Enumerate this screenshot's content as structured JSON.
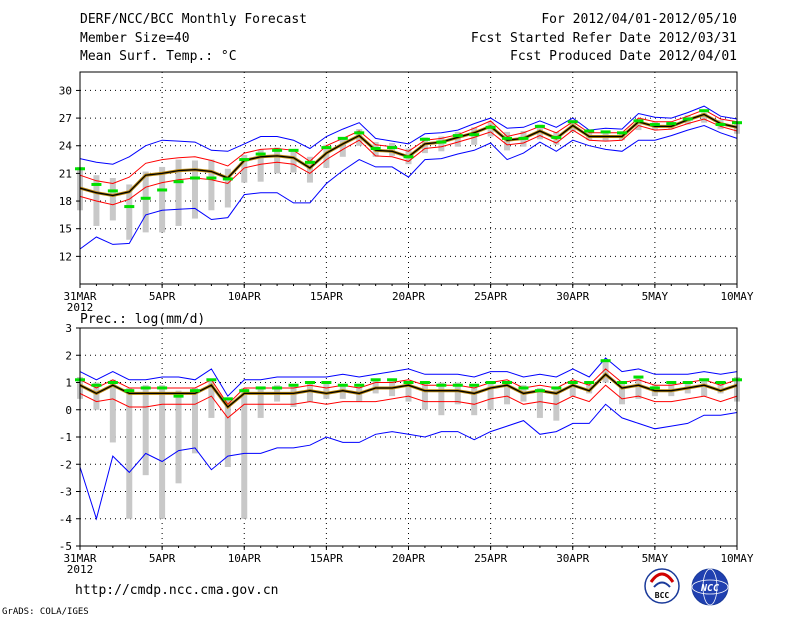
{
  "header": {
    "title": "DERF/NCC/BCC Monthly Forecast",
    "member_size": "Member Size=40",
    "variable": "Mean Surf. Temp.: °C",
    "forecast_range": "For 2012/04/01-2012/05/10",
    "start_refer": "Fcst Started Refer Date 2012/03/31",
    "produced": "Fcst Produced Date 2012/04/01"
  },
  "footer": {
    "url": "http://cmdp.ncc.cma.gov.cn",
    "grads": "GrADS: COLA/IGES",
    "logo_bcc": "BCC",
    "logo_ncc": "NCC"
  },
  "colors": {
    "envelope": "#0000ff",
    "band": "#ff0000",
    "mean": "#000000",
    "obs": "#00e000",
    "box": "#c8c8c8",
    "grid": "#000000"
  },
  "chart_data": [
    {
      "type": "line",
      "title": "Mean Surf. Temp.: °C",
      "x_labels": [
        "31MAR",
        "5APR",
        "10APR",
        "15APR",
        "20APR",
        "25APR",
        "30APR",
        "5MAY",
        "10MAY"
      ],
      "x_sublabel": "2012",
      "x": [
        0,
        1,
        2,
        3,
        4,
        5,
        6,
        7,
        8,
        9,
        10,
        11,
        12,
        13,
        14,
        15,
        16,
        17,
        18,
        19,
        20,
        21,
        22,
        23,
        24,
        25,
        26,
        27,
        28,
        29,
        30,
        31,
        32,
        33,
        34,
        35,
        36,
        37,
        38,
        39,
        40
      ],
      "ylim": [
        9,
        32
      ],
      "yticks": [
        12,
        15,
        18,
        21,
        24,
        27,
        30
      ],
      "series": [
        {
          "name": "max",
          "role": "envelope",
          "values": [
            22.6,
            22.2,
            22.0,
            22.8,
            24.0,
            24.6,
            24.5,
            24.4,
            23.5,
            23.4,
            24.2,
            25.0,
            25.0,
            24.6,
            23.7,
            25.0,
            25.8,
            26.5,
            24.8,
            24.5,
            24.2,
            25.3,
            25.4,
            25.7,
            26.4,
            27.0,
            25.9,
            26.0,
            26.7,
            26.0,
            27.0,
            25.7,
            25.9,
            25.8,
            27.5,
            27.1,
            27.0,
            27.6,
            28.3,
            27.2,
            26.9
          ]
        },
        {
          "name": "upper",
          "role": "band",
          "values": [
            20.8,
            20.2,
            19.9,
            20.6,
            22.1,
            22.5,
            22.7,
            22.8,
            22.4,
            21.8,
            23.2,
            23.6,
            23.7,
            23.5,
            22.3,
            24.0,
            24.8,
            25.6,
            24.1,
            23.9,
            23.4,
            24.6,
            24.8,
            25.2,
            25.9,
            26.7,
            25.0,
            25.4,
            26.1,
            25.4,
            26.6,
            25.4,
            25.4,
            25.4,
            27.0,
            26.6,
            26.6,
            27.2,
            27.9,
            26.9,
            26.6
          ]
        },
        {
          "name": "ensemble mean",
          "role": "mean",
          "values": [
            19.4,
            18.9,
            18.6,
            19.0,
            20.8,
            21.0,
            21.3,
            21.4,
            21.2,
            20.5,
            22.4,
            22.8,
            22.9,
            22.7,
            21.6,
            23.2,
            24.2,
            25.1,
            23.5,
            23.4,
            22.8,
            24.2,
            24.4,
            24.9,
            25.4,
            26.1,
            24.6,
            24.8,
            25.6,
            24.8,
            26.2,
            25.0,
            25.0,
            25.0,
            26.6,
            26.1,
            26.1,
            26.8,
            27.4,
            26.4,
            26.0
          ]
        },
        {
          "name": "lower",
          "role": "band",
          "values": [
            18.5,
            18.0,
            17.6,
            18.2,
            19.5,
            20.0,
            20.3,
            20.5,
            20.3,
            19.9,
            21.6,
            22.0,
            22.2,
            22.0,
            21.0,
            22.5,
            23.6,
            24.6,
            22.9,
            22.8,
            22.3,
            23.7,
            23.9,
            24.4,
            24.9,
            25.5,
            24.1,
            24.3,
            25.1,
            24.3,
            25.7,
            24.6,
            24.5,
            24.6,
            26.2,
            25.7,
            25.8,
            26.4,
            26.9,
            26.1,
            25.6
          ]
        },
        {
          "name": "min",
          "role": "envelope",
          "values": [
            12.8,
            14.1,
            13.3,
            13.4,
            16.5,
            17.0,
            17.1,
            17.2,
            16.0,
            16.2,
            18.7,
            18.9,
            18.9,
            17.8,
            17.8,
            19.9,
            21.3,
            22.5,
            21.7,
            21.7,
            20.6,
            22.5,
            22.6,
            23.1,
            23.5,
            24.3,
            22.5,
            23.2,
            24.4,
            23.4,
            24.6,
            24.0,
            23.6,
            23.4,
            24.6,
            24.6,
            25.1,
            25.7,
            26.2,
            25.4,
            24.8
          ]
        }
      ],
      "obs_values": [
        21.5,
        19.8,
        19.1,
        17.4,
        18.3,
        19.2,
        20.1,
        20.5,
        20.5,
        20.4,
        22.5,
        23.1,
        23.5,
        23.5,
        22.2,
        23.8,
        24.8,
        25.4,
        23.7,
        23.8,
        22.8,
        24.7,
        24.4,
        25.1,
        25.2,
        26.0,
        24.8,
        24.8,
        26.1,
        24.9,
        26.6,
        25.6,
        25.5,
        25.4,
        26.7,
        26.3,
        26.4,
        26.9,
        27.8,
        26.3,
        26.5
      ],
      "box_ranges": [
        [
          17.0,
          21.7
        ],
        [
          15.3,
          20.8
        ],
        [
          15.9,
          20.5
        ],
        [
          13.8,
          19.8
        ],
        [
          14.6,
          21.2
        ],
        [
          14.6,
          21.7
        ],
        [
          15.3,
          22.5
        ],
        [
          16.1,
          22.4
        ],
        [
          17.0,
          22.5
        ],
        [
          17.3,
          21.5
        ],
        [
          20.0,
          23.0
        ],
        [
          20.1,
          23.6
        ],
        [
          21.0,
          23.8
        ],
        [
          21.1,
          23.6
        ],
        [
          20.0,
          22.8
        ],
        [
          21.6,
          24.1
        ],
        [
          22.8,
          24.9
        ],
        [
          24.0,
          25.8
        ],
        [
          22.8,
          24.4
        ],
        [
          22.9,
          24.3
        ],
        [
          22.0,
          23.7
        ],
        [
          23.2,
          24.9
        ],
        [
          23.4,
          25.0
        ],
        [
          23.9,
          25.5
        ],
        [
          24.1,
          26.0
        ],
        [
          25.0,
          26.6
        ],
        [
          23.5,
          25.5
        ],
        [
          23.9,
          25.6
        ],
        [
          24.7,
          26.3
        ],
        [
          24.1,
          25.5
        ],
        [
          25.5,
          26.8
        ],
        [
          24.6,
          25.8
        ],
        [
          24.5,
          25.6
        ],
        [
          24.6,
          25.5
        ],
        [
          25.7,
          26.9
        ],
        [
          25.7,
          26.6
        ],
        [
          25.8,
          26.6
        ],
        [
          26.3,
          27.3
        ],
        [
          26.5,
          27.6
        ],
        [
          25.8,
          26.8
        ],
        [
          25.3,
          26.6
        ]
      ]
    },
    {
      "type": "line",
      "title": "Prec.: log(mm/d)",
      "x_labels": [
        "31MAR",
        "5APR",
        "10APR",
        "15APR",
        "20APR",
        "25APR",
        "30APR",
        "5MAY",
        "10MAY"
      ],
      "x_sublabel": "2012",
      "x": [
        0,
        1,
        2,
        3,
        4,
        5,
        6,
        7,
        8,
        9,
        10,
        11,
        12,
        13,
        14,
        15,
        16,
        17,
        18,
        19,
        20,
        21,
        22,
        23,
        24,
        25,
        26,
        27,
        28,
        29,
        30,
        31,
        32,
        33,
        34,
        35,
        36,
        37,
        38,
        39,
        40
      ],
      "ylim": [
        -5,
        3
      ],
      "yticks": [
        -5,
        -4,
        -3,
        -2,
        -1,
        0,
        1,
        2,
        3
      ],
      "series": [
        {
          "name": "max",
          "role": "envelope",
          "values": [
            1.4,
            1.1,
            1.4,
            1.1,
            1.1,
            1.2,
            1.2,
            1.1,
            1.5,
            0.5,
            1.1,
            1.1,
            1.2,
            1.2,
            1.2,
            1.2,
            1.3,
            1.2,
            1.3,
            1.4,
            1.5,
            1.3,
            1.3,
            1.3,
            1.2,
            1.4,
            1.4,
            1.2,
            1.3,
            1.2,
            1.5,
            1.2,
            1.9,
            1.4,
            1.5,
            1.3,
            1.3,
            1.3,
            1.4,
            1.3,
            1.4
          ]
        },
        {
          "name": "upper",
          "role": "band",
          "values": [
            1.1,
            0.8,
            1.1,
            0.8,
            0.8,
            0.8,
            0.8,
            0.8,
            1.1,
            0.2,
            0.8,
            0.8,
            0.8,
            0.8,
            0.9,
            0.8,
            0.9,
            0.8,
            1.0,
            1.0,
            1.1,
            0.9,
            0.9,
            0.9,
            0.8,
            1.0,
            1.1,
            0.8,
            0.9,
            0.8,
            1.1,
            0.9,
            1.5,
            1.0,
            1.1,
            0.9,
            0.9,
            1.0,
            1.1,
            0.9,
            1.1
          ]
        },
        {
          "name": "ensemble mean",
          "role": "mean",
          "values": [
            0.9,
            0.6,
            0.9,
            0.6,
            0.6,
            0.6,
            0.6,
            0.6,
            0.9,
            0.1,
            0.6,
            0.6,
            0.6,
            0.6,
            0.7,
            0.6,
            0.7,
            0.6,
            0.8,
            0.8,
            0.9,
            0.7,
            0.7,
            0.7,
            0.6,
            0.8,
            0.9,
            0.6,
            0.7,
            0.6,
            0.9,
            0.7,
            1.3,
            0.8,
            0.9,
            0.7,
            0.7,
            0.8,
            0.9,
            0.7,
            0.9
          ]
        },
        {
          "name": "lower",
          "role": "band",
          "values": [
            0.6,
            0.3,
            0.4,
            0.1,
            0.1,
            0.2,
            0.2,
            0.2,
            0.5,
            -0.3,
            0.2,
            0.2,
            0.2,
            0.2,
            0.3,
            0.2,
            0.3,
            0.3,
            0.3,
            0.4,
            0.5,
            0.3,
            0.3,
            0.3,
            0.2,
            0.4,
            0.5,
            0.2,
            0.3,
            0.2,
            0.5,
            0.3,
            0.9,
            0.4,
            0.5,
            0.3,
            0.3,
            0.4,
            0.5,
            0.3,
            0.5
          ]
        },
        {
          "name": "min",
          "role": "envelope",
          "values": [
            -2.1,
            -4.0,
            -1.7,
            -2.3,
            -1.6,
            -1.9,
            -1.5,
            -1.4,
            -2.2,
            -1.7,
            -1.6,
            -1.6,
            -1.4,
            -1.4,
            -1.3,
            -1.0,
            -1.2,
            -1.2,
            -0.9,
            -0.8,
            -0.9,
            -1.0,
            -0.8,
            -0.8,
            -1.1,
            -0.8,
            -0.6,
            -0.4,
            -0.9,
            -0.8,
            -0.5,
            -0.5,
            0.2,
            -0.3,
            -0.5,
            -0.7,
            -0.6,
            -0.5,
            -0.2,
            -0.2,
            -0.1
          ]
        }
      ],
      "obs_values": [
        1.1,
        0.9,
        1.0,
        0.7,
        0.8,
        0.8,
        0.5,
        0.7,
        1.1,
        0.4,
        0.7,
        0.8,
        0.8,
        0.9,
        1.0,
        1.0,
        0.9,
        0.9,
        1.1,
        1.1,
        1.0,
        1.0,
        0.9,
        0.9,
        0.9,
        1.0,
        1.0,
        0.8,
        0.7,
        0.8,
        1.0,
        1.0,
        1.8,
        1.0,
        1.2,
        0.8,
        1.0,
        1.0,
        1.1,
        1.0,
        1.1
      ],
      "box_ranges": [
        [
          0.4,
          1.2
        ],
        [
          0.0,
          1.0
        ],
        [
          -1.2,
          1.1
        ],
        [
          -4.0,
          0.8
        ],
        [
          -2.4,
          0.9
        ],
        [
          -4.0,
          0.9
        ],
        [
          -2.7,
          0.7
        ],
        [
          -1.6,
          0.8
        ],
        [
          -0.3,
          1.1
        ],
        [
          -2.1,
          0.4
        ],
        [
          -4.0,
          0.8
        ],
        [
          -0.3,
          0.8
        ],
        [
          0.3,
          0.9
        ],
        [
          0.1,
          0.9
        ],
        [
          0.3,
          1.0
        ],
        [
          0.4,
          1.0
        ],
        [
          0.4,
          0.9
        ],
        [
          0.3,
          0.9
        ],
        [
          0.6,
          1.1
        ],
        [
          0.5,
          1.1
        ],
        [
          0.3,
          1.0
        ],
        [
          0.0,
          1.0
        ],
        [
          -0.2,
          1.0
        ],
        [
          0.2,
          1.0
        ],
        [
          -0.2,
          0.9
        ],
        [
          0.0,
          1.0
        ],
        [
          0.2,
          1.0
        ],
        [
          0.3,
          0.9
        ],
        [
          -0.3,
          0.8
        ],
        [
          -0.4,
          0.8
        ],
        [
          0.5,
          1.0
        ],
        [
          0.6,
          1.0
        ],
        [
          1.0,
          1.8
        ],
        [
          0.2,
          1.0
        ],
        [
          0.4,
          1.2
        ],
        [
          0.5,
          0.9
        ],
        [
          0.5,
          1.0
        ],
        [
          0.6,
          1.0
        ],
        [
          0.5,
          1.1
        ],
        [
          0.6,
          1.0
        ],
        [
          0.3,
          1.2
        ]
      ]
    }
  ]
}
